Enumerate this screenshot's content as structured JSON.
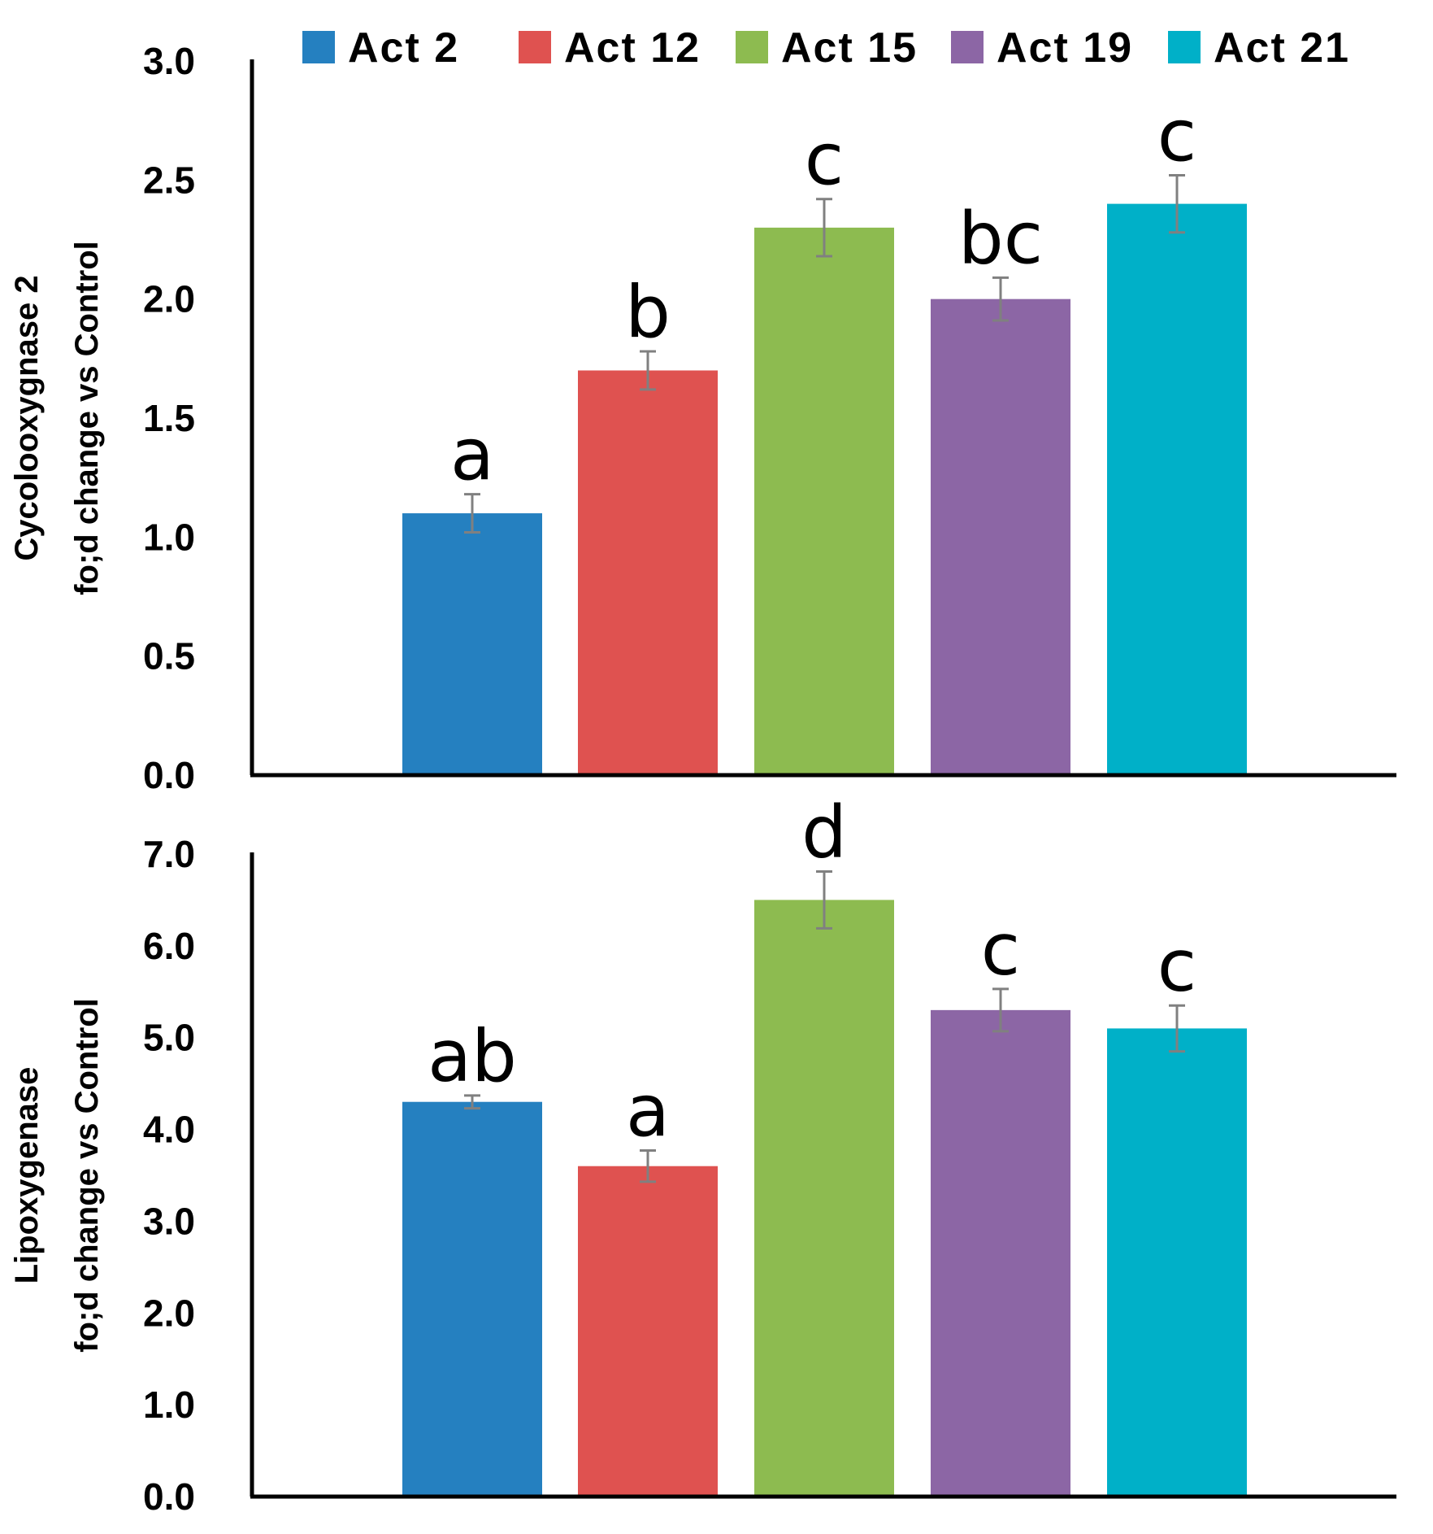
{
  "chart_data": [
    {
      "type": "bar",
      "panel": "top",
      "categories": [
        "Act 2",
        "Act 12",
        "Act 15",
        "Act 19",
        "Act 21"
      ],
      "values": [
        1.1,
        1.7,
        2.3,
        2.0,
        2.4
      ],
      "errors": [
        0.08,
        0.08,
        0.12,
        0.09,
        0.12
      ],
      "significance": [
        "a",
        "b",
        "c",
        "bc",
        "c"
      ],
      "ylabel_lines": [
        "Cycolooxygnase 2",
        "fo;d change vs Control"
      ],
      "ylim": [
        0,
        3.0
      ],
      "yticks": [
        "0.0",
        "0.5",
        "1.0",
        "1.5",
        "2.0",
        "2.5",
        "3.0"
      ],
      "grid": false
    },
    {
      "type": "bar",
      "panel": "bottom",
      "categories": [
        "Act 2",
        "Act 12",
        "Act 15",
        "Act 19",
        "Act 21"
      ],
      "values": [
        4.3,
        3.6,
        6.5,
        5.3,
        5.1
      ],
      "errors": [
        0.07,
        0.17,
        0.31,
        0.23,
        0.25
      ],
      "significance": [
        "ab",
        "a",
        "d",
        "c",
        "c"
      ],
      "ylabel_lines": [
        "Lipoxygenase",
        "fo;d change vs Control"
      ],
      "ylim": [
        0,
        7.0
      ],
      "yticks": [
        "0.0",
        "1.0",
        "2.0",
        "3.0",
        "4.0",
        "5.0",
        "6.0",
        "7.0"
      ],
      "grid": false
    }
  ],
  "legend": {
    "placement": "top",
    "items": [
      {
        "label": "Act 2",
        "color": "#2580C0"
      },
      {
        "label": "Act 12",
        "color": "#DF5250"
      },
      {
        "label": "Act 15",
        "color": "#8DBB50"
      },
      {
        "label": "Act 19",
        "color": "#8C66A5"
      },
      {
        "label": "Act 21",
        "color": "#00B0C8"
      }
    ]
  },
  "colors": {
    "error_bar": "#808080",
    "axis": "#000000"
  }
}
